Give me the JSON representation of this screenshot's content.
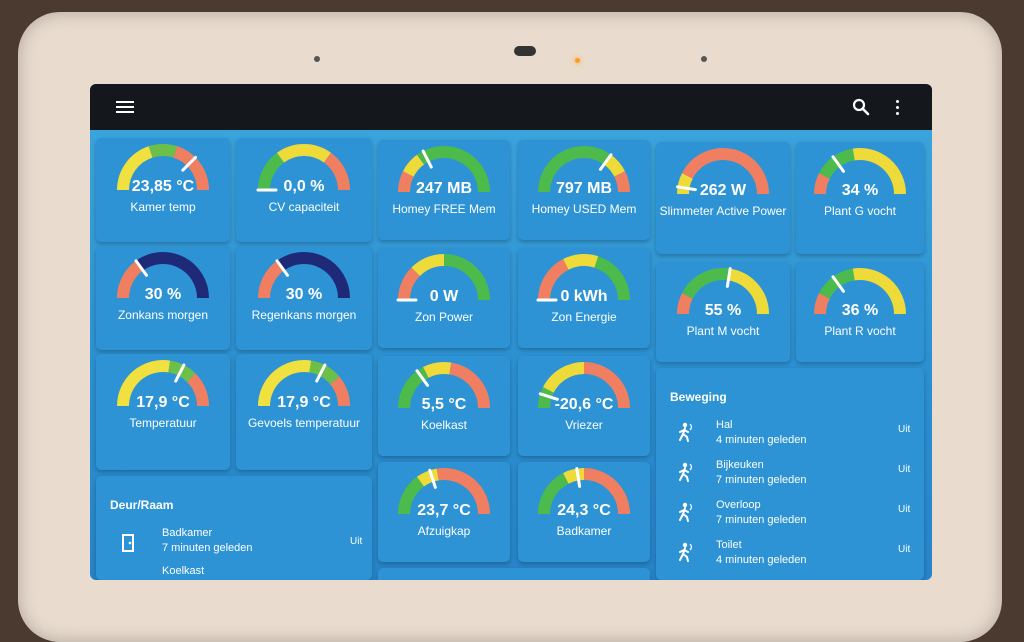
{
  "gauges": [
    {
      "id": "kamer-temp",
      "value": "23,85 °C",
      "label": "Kamer temp",
      "level": 0.75,
      "segs": [
        [
          "#f0e040",
          0,
          0.4
        ],
        [
          "#6cc04a",
          0.4,
          0.6
        ],
        [
          "#f07f62",
          0.6,
          1
        ]
      ]
    },
    {
      "id": "cv-capaciteit",
      "value": "0,0 %",
      "label": "CV capaciteit",
      "level": 0.0,
      "segs": [
        [
          "#4cbb4c",
          0,
          0.3
        ],
        [
          "#eedb3a",
          0.3,
          0.7
        ],
        [
          "#f07f62",
          0.7,
          1
        ]
      ]
    },
    {
      "id": "homey-free-mem",
      "value": "247 MB",
      "label": "Homey FREE Mem",
      "level": 0.35,
      "segs": [
        [
          "#f07f62",
          0,
          0.15
        ],
        [
          "#eedb3a",
          0.15,
          0.3
        ],
        [
          "#4cbb4c",
          0.3,
          1
        ]
      ]
    },
    {
      "id": "homey-used-mem",
      "value": "797 MB",
      "label": "Homey USED Mem",
      "level": 0.7,
      "segs": [
        [
          "#4cbb4c",
          0,
          0.7
        ],
        [
          "#eedb3a",
          0.7,
          0.85
        ],
        [
          "#f07f62",
          0.85,
          1
        ]
      ]
    },
    {
      "id": "slimmeter-power",
      "value": "262 W",
      "label": "Slimmeter Active Power",
      "level": 0.05,
      "segs": [
        [
          "#eedb3a",
          0,
          0.15
        ],
        [
          "#f07f62",
          0.15,
          1
        ]
      ]
    },
    {
      "id": "plant-g-vocht",
      "value": "34 %",
      "label": "Plant G vocht",
      "level": 0.3,
      "segs": [
        [
          "#f07f62",
          0,
          0.15
        ],
        [
          "#4cbb4c",
          0.15,
          0.45
        ],
        [
          "#eedb3a",
          0.45,
          1
        ]
      ]
    },
    {
      "id": "zonkans-morgen",
      "value": "30 %",
      "label": "Zonkans morgen",
      "level": 0.3,
      "segs": [
        [
          "#f07f62",
          0,
          0.3
        ],
        [
          "#1e2a78",
          0.3,
          1
        ]
      ]
    },
    {
      "id": "regenkans-morgen",
      "value": "30 %",
      "label": "Regenkans morgen",
      "level": 0.3,
      "segs": [
        [
          "#f07f62",
          0,
          0.3
        ],
        [
          "#1e2a78",
          0.3,
          1
        ]
      ]
    },
    {
      "id": "zon-power",
      "value": "0 W",
      "label": "Zon Power",
      "level": 0.0,
      "segs": [
        [
          "#f07f62",
          0,
          0.25
        ],
        [
          "#eedb3a",
          0.25,
          0.5
        ],
        [
          "#4cbb4c",
          0.5,
          1
        ]
      ]
    },
    {
      "id": "zon-energie",
      "value": "0 kWh",
      "label": "Zon Energie",
      "level": 0.0,
      "segs": [
        [
          "#f07f62",
          0,
          0.35
        ],
        [
          "#eedb3a",
          0.35,
          0.6
        ],
        [
          "#4cbb4c",
          0.6,
          1
        ]
      ]
    },
    {
      "id": "plant-m-vocht",
      "value": "55 %",
      "label": "Plant M vocht",
      "level": 0.55,
      "segs": [
        [
          "#f07f62",
          0,
          0.15
        ],
        [
          "#4cbb4c",
          0.15,
          0.55
        ],
        [
          "#eedb3a",
          0.55,
          1
        ]
      ]
    },
    {
      "id": "plant-r-vocht",
      "value": "36 %",
      "label": "Plant R vocht",
      "level": 0.3,
      "segs": [
        [
          "#f07f62",
          0,
          0.15
        ],
        [
          "#4cbb4c",
          0.15,
          0.45
        ],
        [
          "#eedb3a",
          0.45,
          1
        ]
      ]
    },
    {
      "id": "temperatuur",
      "value": "17,9 °C",
      "label": "Temperatuur",
      "level": 0.65,
      "segs": [
        [
          "#f0e040",
          0,
          0.55
        ],
        [
          "#6cc04a",
          0.55,
          0.75
        ],
        [
          "#f07f62",
          0.75,
          1
        ]
      ]
    },
    {
      "id": "gevoels-temperatuur",
      "value": "17,9 °C",
      "label": "Gevoels temperatuur",
      "level": 0.65,
      "segs": [
        [
          "#f0e040",
          0,
          0.55
        ],
        [
          "#6cc04a",
          0.55,
          0.78
        ],
        [
          "#f07f62",
          0.78,
          1
        ]
      ]
    },
    {
      "id": "koelkast",
      "value": "5,5 °C",
      "label": "Koelkast",
      "level": 0.3,
      "segs": [
        [
          "#4cbb4c",
          0,
          0.35
        ],
        [
          "#eedb3a",
          0.35,
          0.55
        ],
        [
          "#f07f62",
          0.55,
          1
        ]
      ]
    },
    {
      "id": "vriezer",
      "value": "-20,6 °C",
      "label": "Vriezer",
      "level": 0.1,
      "segs": [
        [
          "#4cbb4c",
          0,
          0.15
        ],
        [
          "#eedb3a",
          0.15,
          0.5
        ],
        [
          "#f07f62",
          0.5,
          1
        ]
      ]
    },
    {
      "id": "afzuigkap",
      "value": "23,7 °C",
      "label": "Afzuigkap",
      "level": 0.4,
      "segs": [
        [
          "#4cbb4c",
          0,
          0.3
        ],
        [
          "#eedb3a",
          0.3,
          0.45
        ],
        [
          "#f07f62",
          0.45,
          1
        ]
      ]
    },
    {
      "id": "badkamer-temp",
      "value": "24,3 °C",
      "label": "Badkamer",
      "level": 0.45,
      "segs": [
        [
          "#4cbb4c",
          0,
          0.35
        ],
        [
          "#eedb3a",
          0.35,
          0.5
        ],
        [
          "#f07f62",
          0.5,
          1
        ]
      ]
    }
  ],
  "deur_raam": {
    "title": "Deur/Raam",
    "items": [
      {
        "name": "Badkamer",
        "sub": "7 minuten geleden",
        "state": "Uit"
      },
      {
        "name": "Koelkast",
        "sub": "",
        "state": ""
      }
    ]
  },
  "beweging": {
    "title": "Beweging",
    "items": [
      {
        "name": "Hal",
        "sub": "4 minuten geleden",
        "state": "Uit"
      },
      {
        "name": "Bijkeuken",
        "sub": "7 minuten geleden",
        "state": "Uit"
      },
      {
        "name": "Overloop",
        "sub": "7 minuten geleden",
        "state": "Uit"
      },
      {
        "name": "Toilet",
        "sub": "4 minuten geleden",
        "state": "Uit"
      }
    ]
  },
  "icons": {
    "menu": "menu-icon",
    "search": "search-icon",
    "more": "more-vert-icon",
    "door": "door-sensor-icon",
    "motion": "motion-sensor-icon"
  }
}
